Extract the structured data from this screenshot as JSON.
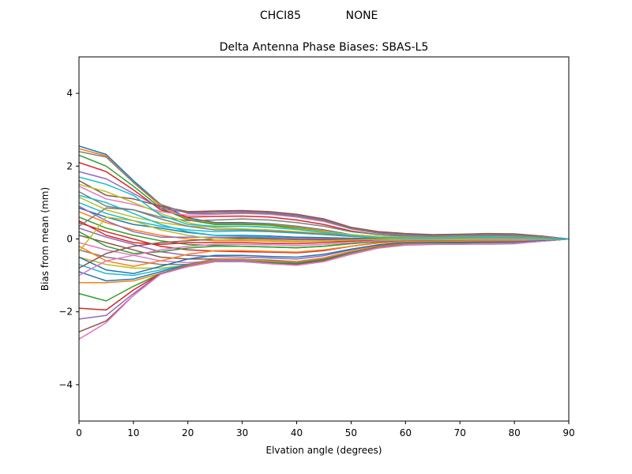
{
  "figure": {
    "suptitle_left": "CHCI85",
    "suptitle_right": "NONE"
  },
  "chart_data": {
    "type": "line",
    "title": "Delta Antenna Phase Biases: SBAS-L5",
    "xlabel": "Elvation angle (degrees)",
    "ylabel": "Bias from mean (mm)",
    "xlim": [
      0,
      90
    ],
    "ylim": [
      -5,
      5
    ],
    "xticks": [
      0,
      10,
      20,
      30,
      40,
      50,
      60,
      70,
      80,
      90
    ],
    "yticks": [
      -4,
      -2,
      0,
      2,
      4
    ],
    "ytick_labels": [
      "−4",
      "−2",
      "0",
      "2",
      "4"
    ],
    "grid": false,
    "legend": "none",
    "x": [
      0,
      5,
      10,
      15,
      20,
      25,
      30,
      35,
      40,
      45,
      50,
      55,
      60,
      65,
      70,
      75,
      80,
      85,
      90
    ],
    "colors": [
      "#1f77b4",
      "#ff7f0e",
      "#2ca02c",
      "#d62728",
      "#9467bd",
      "#8c564b",
      "#e377c2",
      "#7f7f7f",
      "#bcbd22",
      "#17becf"
    ],
    "series": [
      {
        "values": [
          2.55,
          2.32,
          1.6,
          0.95,
          0.58,
          0.45,
          0.45,
          0.42,
          0.35,
          0.25,
          0.12,
          0.06,
          0.04,
          0.04,
          0.05,
          0.06,
          0.05,
          0.03,
          0
        ]
      },
      {
        "values": [
          2.48,
          2.28,
          1.55,
          0.9,
          0.55,
          0.42,
          0.42,
          0.4,
          0.33,
          0.23,
          0.1,
          0.05,
          0.03,
          0.03,
          0.04,
          0.05,
          0.04,
          0.02,
          0
        ]
      },
      {
        "values": [
          2.3,
          2.0,
          1.45,
          0.85,
          0.52,
          0.4,
          0.4,
          0.38,
          0.3,
          0.2,
          0.09,
          0.04,
          0.02,
          0.02,
          0.03,
          0.04,
          0.03,
          0.02,
          0
        ]
      },
      {
        "values": [
          2.1,
          1.85,
          1.35,
          0.8,
          0.6,
          0.62,
          0.63,
          0.6,
          0.52,
          0.4,
          0.22,
          0.12,
          0.08,
          0.07,
          0.08,
          0.1,
          0.09,
          0.05,
          0
        ]
      },
      {
        "values": [
          1.85,
          1.65,
          1.25,
          0.85,
          0.72,
          0.74,
          0.75,
          0.72,
          0.65,
          0.52,
          0.3,
          0.18,
          0.12,
          0.1,
          0.12,
          0.14,
          0.13,
          0.07,
          0
        ]
      },
      {
        "values": [
          1.6,
          1.2,
          1.1,
          0.9,
          0.75,
          0.77,
          0.78,
          0.75,
          0.68,
          0.55,
          0.32,
          0.2,
          0.15,
          0.12,
          0.13,
          0.15,
          0.14,
          0.08,
          0
        ]
      },
      {
        "values": [
          1.45,
          1.1,
          0.95,
          0.75,
          0.65,
          0.68,
          0.7,
          0.68,
          0.6,
          0.48,
          0.28,
          0.16,
          0.1,
          0.08,
          0.1,
          0.12,
          0.11,
          0.06,
          0
        ]
      },
      {
        "values": [
          1.3,
          0.9,
          0.8,
          0.6,
          0.5,
          0.52,
          0.55,
          0.52,
          0.45,
          0.35,
          0.2,
          0.12,
          0.07,
          0.06,
          0.07,
          0.09,
          0.08,
          0.04,
          0
        ]
      },
      {
        "values": [
          1.15,
          0.8,
          0.6,
          0.45,
          0.35,
          0.33,
          0.35,
          0.33,
          0.28,
          0.2,
          0.12,
          0.07,
          0.05,
          0.04,
          0.05,
          0.06,
          0.05,
          0.03,
          0
        ]
      },
      {
        "values": [
          1.0,
          0.7,
          0.5,
          0.35,
          0.25,
          0.2,
          0.22,
          0.2,
          0.16,
          0.12,
          0.07,
          0.04,
          0.03,
          0.03,
          0.04,
          0.05,
          0.04,
          0.02,
          0
        ]
      },
      {
        "values": [
          0.85,
          0.6,
          0.4,
          0.3,
          0.18,
          0.1,
          0.1,
          0.08,
          0.05,
          0.04,
          0.02,
          0.01,
          0.0,
          0.01,
          0.02,
          0.03,
          0.02,
          0.01,
          0
        ]
      },
      {
        "values": [
          0.75,
          0.45,
          0.25,
          0.1,
          0.0,
          -0.05,
          -0.05,
          -0.06,
          -0.08,
          -0.06,
          -0.04,
          -0.02,
          -0.01,
          0.0,
          0.01,
          0.01,
          0.01,
          0.0,
          0
        ]
      },
      {
        "values": [
          0.6,
          0.3,
          0.1,
          -0.05,
          -0.15,
          -0.18,
          -0.2,
          -0.22,
          -0.24,
          -0.2,
          -0.12,
          -0.06,
          -0.03,
          -0.02,
          -0.01,
          0.0,
          0.0,
          0.0,
          0
        ]
      },
      {
        "values": [
          0.45,
          0.2,
          0.0,
          -0.2,
          -0.3,
          -0.33,
          -0.35,
          -0.36,
          -0.38,
          -0.32,
          -0.2,
          -0.1,
          -0.05,
          -0.04,
          -0.03,
          -0.02,
          -0.02,
          -0.01,
          0
        ]
      },
      {
        "values": [
          0.3,
          0.05,
          -0.15,
          -0.35,
          -0.45,
          -0.48,
          -0.5,
          -0.52,
          -0.55,
          -0.46,
          -0.3,
          -0.16,
          -0.09,
          -0.07,
          -0.06,
          -0.05,
          -0.05,
          -0.02,
          0
        ]
      },
      {
        "values": [
          0.1,
          -0.1,
          -0.3,
          -0.5,
          -0.55,
          -0.55,
          -0.56,
          -0.58,
          -0.62,
          -0.52,
          -0.34,
          -0.19,
          -0.12,
          -0.1,
          -0.09,
          -0.08,
          -0.08,
          -0.04,
          0
        ]
      },
      {
        "values": [
          -0.1,
          -0.3,
          -0.45,
          -0.6,
          -0.65,
          -0.6,
          -0.6,
          -0.63,
          -0.67,
          -0.58,
          -0.38,
          -0.22,
          -0.15,
          -0.13,
          -0.12,
          -0.12,
          -0.11,
          -0.05,
          0
        ]
      },
      {
        "values": [
          -0.3,
          -0.5,
          -0.6,
          -0.7,
          -0.7,
          -0.62,
          -0.62,
          -0.66,
          -0.7,
          -0.62,
          -0.42,
          -0.25,
          -0.17,
          -0.15,
          -0.14,
          -0.14,
          -0.13,
          -0.06,
          0
        ]
      },
      {
        "values": [
          -0.5,
          -0.7,
          -0.8,
          -0.8,
          -0.72,
          -0.6,
          -0.6,
          -0.65,
          -0.7,
          -0.6,
          -0.4,
          -0.24,
          -0.16,
          -0.14,
          -0.14,
          -0.13,
          -0.12,
          -0.06,
          0
        ]
      },
      {
        "values": [
          -0.7,
          -0.95,
          -1.0,
          -0.85,
          -0.7,
          -0.58,
          -0.58,
          -0.62,
          -0.66,
          -0.57,
          -0.38,
          -0.22,
          -0.15,
          -0.13,
          -0.13,
          -0.12,
          -0.11,
          -0.05,
          0
        ]
      },
      {
        "values": [
          -0.9,
          -1.15,
          -1.1,
          -0.9,
          -0.7,
          -0.55,
          -0.55,
          -0.6,
          -0.64,
          -0.55,
          -0.36,
          -0.21,
          -0.14,
          -0.12,
          -0.12,
          -0.11,
          -0.1,
          -0.05,
          0
        ]
      },
      {
        "values": [
          -1.2,
          -1.2,
          -1.15,
          -0.95,
          -0.72,
          -0.56,
          -0.56,
          -0.6,
          -0.63,
          -0.53,
          -0.34,
          -0.2,
          -0.13,
          -0.11,
          -0.11,
          -0.1,
          -0.09,
          -0.04,
          0
        ]
      },
      {
        "values": [
          -1.5,
          -1.7,
          -1.3,
          -0.95,
          -0.74,
          -0.6,
          -0.6,
          -0.65,
          -0.68,
          -0.58,
          -0.38,
          -0.22,
          -0.15,
          -0.13,
          -0.12,
          -0.12,
          -0.11,
          -0.05,
          0
        ]
      },
      {
        "values": [
          -1.9,
          -1.95,
          -1.4,
          -0.95,
          -0.76,
          -0.62,
          -0.62,
          -0.67,
          -0.7,
          -0.6,
          -0.4,
          -0.23,
          -0.16,
          -0.14,
          -0.13,
          -0.13,
          -0.12,
          -0.06,
          0
        ]
      },
      {
        "values": [
          -2.2,
          -2.1,
          -1.5,
          -0.95,
          -0.76,
          -0.62,
          -0.62,
          -0.68,
          -0.72,
          -0.62,
          -0.41,
          -0.24,
          -0.16,
          -0.14,
          -0.14,
          -0.13,
          -0.12,
          -0.06,
          0
        ]
      },
      {
        "values": [
          -2.55,
          -2.25,
          -1.55,
          -0.95,
          -0.75,
          -0.6,
          -0.6,
          -0.67,
          -0.71,
          -0.61,
          -0.4,
          -0.24,
          -0.16,
          -0.14,
          -0.14,
          -0.13,
          -0.12,
          -0.06,
          0
        ]
      },
      {
        "values": [
          -2.75,
          -2.3,
          -1.55,
          -0.97,
          -0.76,
          -0.61,
          -0.61,
          -0.68,
          -0.72,
          -0.62,
          -0.41,
          -0.24,
          -0.16,
          -0.14,
          -0.14,
          -0.13,
          -0.12,
          -0.06,
          0
        ]
      },
      {
        "values": [
          2.4,
          2.25,
          1.55,
          0.95,
          0.7,
          0.7,
          0.72,
          0.7,
          0.62,
          0.5,
          0.28,
          0.16,
          0.1,
          0.09,
          0.1,
          0.12,
          0.11,
          0.06,
          0
        ]
      },
      {
        "values": [
          1.5,
          1.3,
          1.0,
          0.7,
          0.45,
          0.3,
          0.28,
          0.25,
          0.2,
          0.15,
          0.08,
          0.04,
          0.02,
          0.02,
          0.03,
          0.04,
          0.03,
          0.02,
          0
        ]
      },
      {
        "values": [
          1.2,
          1.0,
          0.7,
          0.4,
          0.2,
          0.1,
          0.08,
          0.05,
          0.02,
          0.01,
          0.0,
          0.0,
          0.0,
          0.0,
          0.01,
          0.02,
          0.02,
          0.01,
          0
        ]
      },
      {
        "values": [
          -0.5,
          -0.85,
          -0.95,
          -0.75,
          -0.55,
          -0.45,
          -0.45,
          -0.48,
          -0.5,
          -0.42,
          -0.28,
          -0.16,
          -0.1,
          -0.09,
          -0.09,
          -0.08,
          -0.08,
          -0.04,
          0
        ]
      },
      {
        "values": [
          -0.2,
          -0.6,
          -0.75,
          -0.6,
          -0.42,
          -0.32,
          -0.32,
          -0.34,
          -0.36,
          -0.3,
          -0.2,
          -0.11,
          -0.07,
          -0.06,
          -0.06,
          -0.05,
          -0.05,
          -0.02,
          0
        ]
      },
      {
        "values": [
          0.2,
          -0.2,
          -0.4,
          -0.35,
          -0.25,
          -0.2,
          -0.2,
          -0.22,
          -0.24,
          -0.2,
          -0.13,
          -0.07,
          -0.04,
          -0.03,
          -0.03,
          -0.02,
          -0.02,
          -0.01,
          0
        ]
      },
      {
        "values": [
          0.5,
          0.1,
          -0.1,
          -0.15,
          -0.1,
          -0.1,
          -0.1,
          -0.12,
          -0.13,
          -0.1,
          -0.06,
          -0.03,
          -0.02,
          -0.01,
          -0.01,
          0.0,
          0.0,
          0.0,
          0
        ]
      },
      {
        "values": [
          0.9,
          0.5,
          0.2,
          0.05,
          0.05,
          0.05,
          0.05,
          0.03,
          0.02,
          0.01,
          0.0,
          0.0,
          0.0,
          0.0,
          0.0,
          0.01,
          0.01,
          0.0,
          0
        ]
      },
      {
        "values": [
          -0.8,
          -0.4,
          -0.2,
          -0.1,
          -0.05,
          0.0,
          0.02,
          0.0,
          -0.02,
          -0.02,
          -0.01,
          0.0,
          0.0,
          0.0,
          0.0,
          0.0,
          0.0,
          0.0,
          0
        ]
      },
      {
        "values": [
          -1.0,
          -0.6,
          -0.45,
          -0.3,
          -0.2,
          -0.15,
          -0.15,
          -0.16,
          -0.18,
          -0.15,
          -0.1,
          -0.05,
          -0.03,
          -0.02,
          -0.02,
          -0.02,
          -0.02,
          -0.01,
          0
        ]
      },
      {
        "values": [
          0.35,
          0.85,
          0.8,
          0.55,
          0.35,
          0.25,
          0.25,
          0.22,
          0.18,
          0.13,
          0.07,
          0.03,
          0.02,
          0.02,
          0.03,
          0.04,
          0.03,
          0.02,
          0
        ]
      },
      {
        "values": [
          -0.35,
          0.6,
          0.5,
          0.25,
          0.1,
          0.0,
          -0.02,
          -0.04,
          -0.06,
          -0.05,
          -0.03,
          -0.01,
          0.0,
          0.0,
          0.0,
          0.01,
          0.01,
          0.0,
          0
        ]
      },
      {
        "values": [
          1.7,
          1.5,
          1.2,
          0.65,
          0.4,
          0.35,
          0.35,
          0.32,
          0.26,
          0.18,
          0.09,
          0.04,
          0.02,
          0.02,
          0.03,
          0.04,
          0.03,
          0.02,
          0
        ]
      }
    ]
  }
}
